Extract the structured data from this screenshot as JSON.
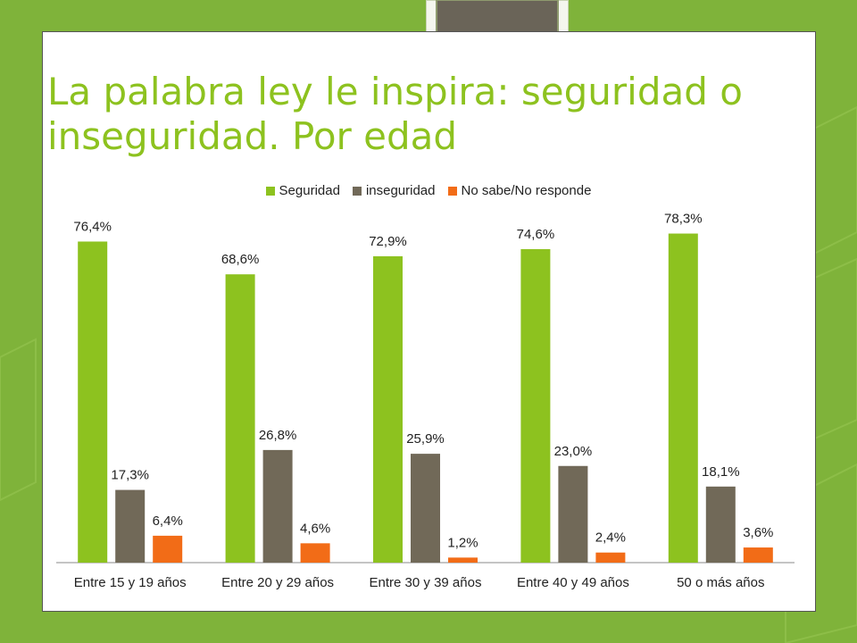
{
  "title": "La palabra ley le inspira: seguridad o inseguridad. Por edad",
  "colors": {
    "background": "#7fb33a",
    "title": "#8dc21f",
    "card": "#ffffff"
  },
  "chart_data": {
    "type": "bar",
    "categories": [
      "Entre 15 y 19 años",
      "Entre 20 y 29 años",
      "Entre 30 y 39 años",
      "Entre 40 y 49 años",
      "50 o más años"
    ],
    "series": [
      {
        "name": "Seguridad",
        "color": "#8dc21f",
        "values": [
          76.4,
          68.6,
          72.9,
          74.6,
          78.3
        ],
        "labels": [
          "76,4%",
          "68,6%",
          "72,9%",
          "74,6%",
          "78,3%"
        ]
      },
      {
        "name": "inseguridad",
        "color": "#716958",
        "values": [
          17.3,
          26.8,
          25.9,
          23.0,
          18.1
        ],
        "labels": [
          "17,3%",
          "26,8%",
          "25,9%",
          "23,0%",
          "18,1%"
        ]
      },
      {
        "name": "No sabe/No responde",
        "color": "#f26c17",
        "values": [
          6.4,
          4.6,
          1.2,
          2.4,
          3.6
        ],
        "labels": [
          "6,4%",
          "4,6%",
          "1,2%",
          "2,4%",
          "3,6%"
        ]
      }
    ],
    "legend_position": "top",
    "grid": false,
    "ylim": [
      0,
      85
    ]
  }
}
